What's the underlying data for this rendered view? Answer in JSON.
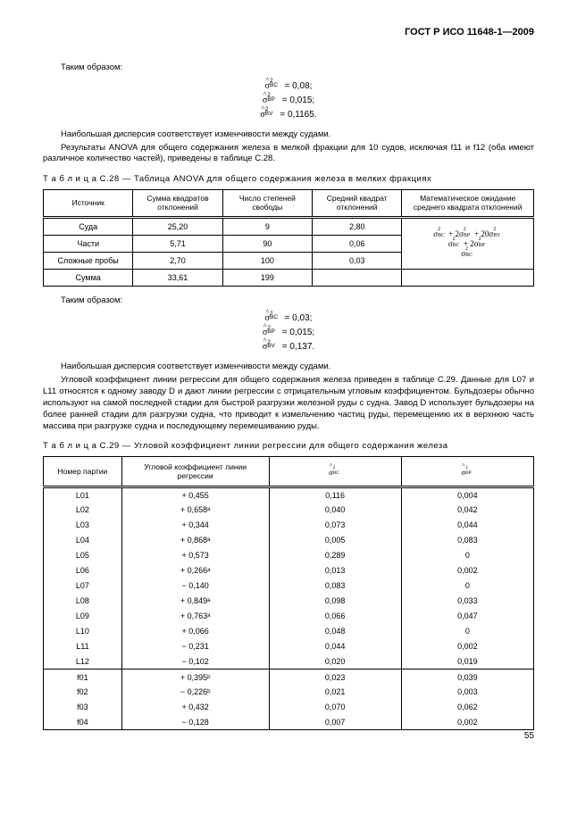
{
  "doc_header": "ГОСТ Р ИСО 11648-1—2009",
  "page_number": "55",
  "text": {
    "thus1": "Таким образом:",
    "eq1_bc": "= 0,08;",
    "eq1_bp": "= 0,015;",
    "eq1_bv": "= 0,1165.",
    "para1": "Наибольшая дисперсия соответствует изменчивости между судами.",
    "para2": "Результаты ANOVA для общего содержания железа в мелкой фракции для 10 судов, исключая f11 и f12 (оба имеют различное количество частей), приведены в таблице C.28.",
    "caption28_prefix": "Т а б л и ц а  C.28 — ",
    "caption28": "Таблица ANOVA для общего содержания железа в мелких фракциях",
    "thus2": "Таким образом:",
    "eq2_bc": "= 0,03;",
    "eq2_bp": "= 0,015;",
    "eq2_bv": "= 0,137.",
    "para3": "Наибольшая дисперсия соответствует изменчивости между судами.",
    "para4": "Угловой коэффициент линии регрессии для общего содержания железа приведен в таблице C.29. Данные для L07 и L11 относятся к одному заводу D и дают линии регрессии с отрицательным угловым коэффициентом. Бульдозеры обычно используют на самой последней стадии для быстрой разгрузки железной руды с судна. Завод D использует бульдозеры на более ранней стадии для разгрузки судна, что приводит к измельчению частиц руды, перемещению их в верхнюю часть массива при разгрузке судна и последующему перемешиванию руды.",
    "caption29_prefix": "Т а б л и ц а  C.29 — ",
    "caption29": "Угловой коэффициент линии регрессии для общего содержания железа"
  },
  "table28": {
    "headers": {
      "source": "Источник",
      "ss": "Сумма квадратов отклонений",
      "df": "Число степеней свободы",
      "ms": "Средний квадрат отклонений",
      "expect": "Математическое ожидание среднего квадрата отклонений"
    },
    "rows": [
      {
        "src": "Суда",
        "ss": "25,20",
        "df": "9",
        "ms": "2,80"
      },
      {
        "src": "Части",
        "ss": "5,71",
        "df": "90",
        "ms": "0,06"
      },
      {
        "src": "Сложные пробы",
        "ss": "2,70",
        "df": "100",
        "ms": "0,03"
      }
    ],
    "sum": {
      "src": "Сумма",
      "ss": "33,61",
      "df": "199"
    }
  },
  "table29": {
    "headers": {
      "lot": "Номер партии",
      "slope": "Угловой коэффициент линии регрессии"
    },
    "rows_L": [
      {
        "lot": "L01",
        "slope": "+ 0,455",
        "s1": "0,116",
        "s2": "0,004"
      },
      {
        "lot": "L02",
        "slope": "+ 0,658ᵃ",
        "s1": "0,040",
        "s2": "0,042"
      },
      {
        "lot": "L03",
        "slope": "+ 0,344",
        "s1": "0,073",
        "s2": "0,044"
      },
      {
        "lot": "L04",
        "slope": "+ 0,868ᵃ",
        "s1": "0,005",
        "s2": "0,083"
      },
      {
        "lot": "L05",
        "slope": "+ 0,573",
        "s1": "0,289",
        "s2": "0"
      },
      {
        "lot": "L06",
        "slope": "+ 0,266ᵃ",
        "s1": "0,013",
        "s2": "0,002"
      },
      {
        "lot": "L07",
        "slope": "− 0,140",
        "s1": "0,083",
        "s2": "0"
      },
      {
        "lot": "L08",
        "slope": "+ 0,849ᵃ",
        "s1": "0,098",
        "s2": "0,033"
      },
      {
        "lot": "L09",
        "slope": "+ 0,763ᵃ",
        "s1": "0,066",
        "s2": "0,047"
      },
      {
        "lot": "L10",
        "slope": "+ 0,066",
        "s1": "0,048",
        "s2": "0"
      },
      {
        "lot": "L11",
        "slope": "− 0,231",
        "s1": "0,044",
        "s2": "0,002"
      },
      {
        "lot": "L12",
        "slope": "− 0,102",
        "s1": "0,020",
        "s2": "0,019"
      }
    ],
    "rows_f": [
      {
        "lot": "f01",
        "slope": "+ 0,395ᵇ",
        "s1": "0,023",
        "s2": "0,039"
      },
      {
        "lot": "f02",
        "slope": "− 0,226ᵇ",
        "s1": "0,021",
        "s2": "0,003"
      },
      {
        "lot": "f03",
        "slope": "+ 0,432",
        "s1": "0,070",
        "s2": "0,062"
      },
      {
        "lot": "f04",
        "slope": "− 0,128",
        "s1": "0,007",
        "s2": "0,002"
      }
    ]
  }
}
